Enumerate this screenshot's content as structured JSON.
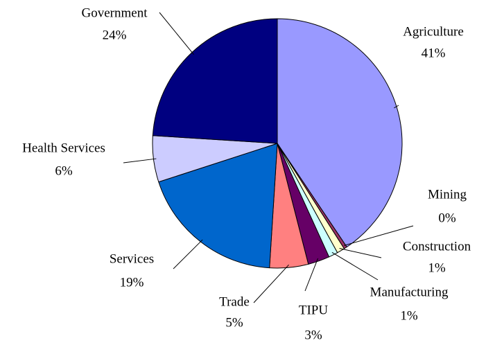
{
  "chart_data": {
    "type": "pie",
    "categories": [
      "Agriculture",
      "Mining",
      "Construction",
      "Manufacturing",
      "TIPU",
      "Trade",
      "Services",
      "Health Services",
      "Government"
    ],
    "values": [
      40.6,
      0.4,
      1,
      1.2,
      2.8,
      5,
      19,
      6,
      24
    ],
    "value_labels": [
      "41%",
      "0%",
      "1%",
      "1%",
      "3%",
      "5%",
      "19%",
      "6%",
      "24%"
    ],
    "colors": [
      "#9999ff",
      "#993366",
      "#ffffcc",
      "#ccffff",
      "#660066",
      "#ff8080",
      "#0066cc",
      "#ccccff",
      "#000080"
    ]
  }
}
